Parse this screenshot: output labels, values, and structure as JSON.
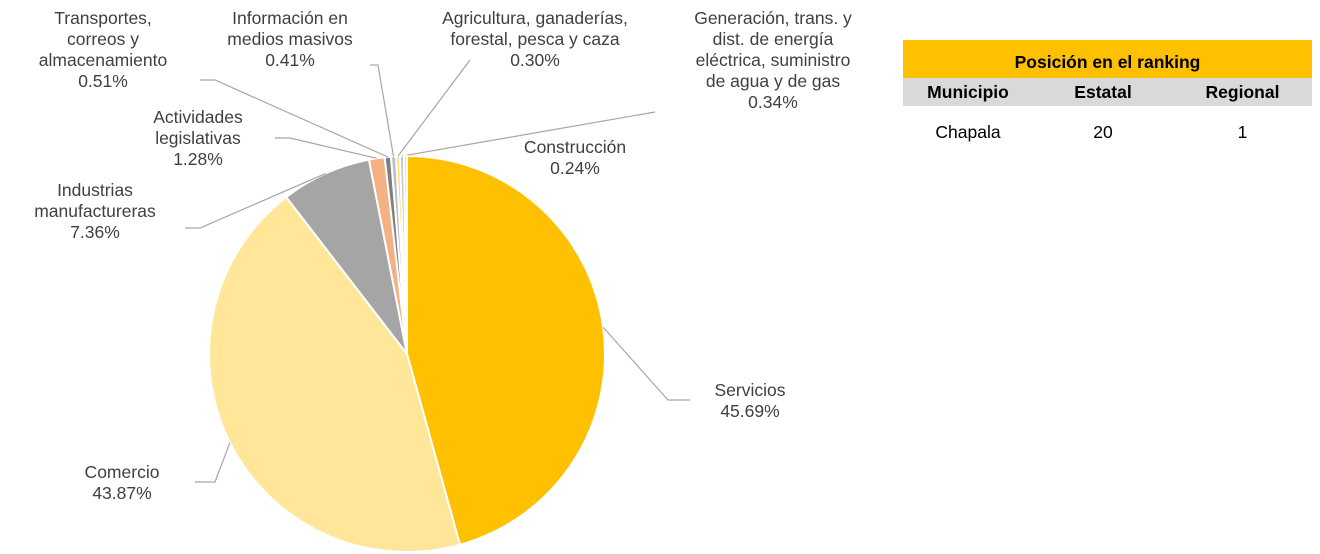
{
  "chart_data": {
    "type": "pie",
    "categories": [
      "Servicios",
      "Comercio",
      "Industrias\nmanufactureras",
      "Actividades\nlegislativas",
      "Transportes,\ncorreos y\nalmacenamiento",
      "Información en\nmedios masivos",
      "Agricultura, ganaderías,\nforestal, pesca y caza",
      "Generación, trans. y\ndist. de energía\neléctrica, suministro\nde agua y de gas",
      "Construcción"
    ],
    "values": [
      45.69,
      43.87,
      7.36,
      1.28,
      0.51,
      0.41,
      0.3,
      0.34,
      0.24
    ],
    "value_labels": [
      "45.69%",
      "43.87%",
      "7.36%",
      "1.28%",
      "0.51%",
      "0.41%",
      "0.30%",
      "0.34%",
      "0.24%"
    ],
    "colors": [
      "#FFC000",
      "#FFE699",
      "#A5A5A5",
      "#F4B183",
      "#7F7F7F",
      "#BFBFBF",
      "#FFD966",
      "#C9C9C9",
      "#F8CBAD"
    ]
  },
  "table": {
    "title": "Posición en el ranking",
    "columns": [
      "Municipio",
      "Estatal",
      "Regional"
    ],
    "rows": [
      [
        "Chapala",
        "20",
        "1"
      ]
    ]
  }
}
